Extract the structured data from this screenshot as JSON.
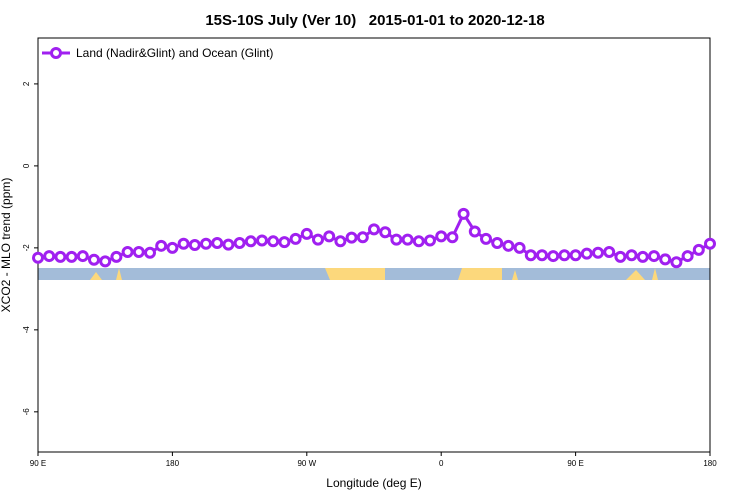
{
  "chart_data": {
    "type": "line",
    "title": "15S-10S July (Ver 10)   2015-01-01 to 2020-12-18",
    "xlabel": "Longitude (deg E)",
    "ylabel": "XCO2 - MLO trend (ppm)",
    "x": [
      90,
      97.5,
      105,
      112.5,
      120,
      127.5,
      135,
      142.5,
      150,
      157.5,
      165,
      172.5,
      180,
      187.5,
      195,
      202.5,
      210,
      217.5,
      225,
      232.5,
      240,
      247.5,
      255,
      262.5,
      270,
      277.5,
      285,
      292.5,
      300,
      307.5,
      315,
      322.5,
      330,
      337.5,
      345,
      352.5,
      360,
      367.5,
      375,
      382.5,
      390,
      397.5,
      405,
      412.5,
      420,
      427.5,
      435,
      442.5,
      450,
      457.5,
      465,
      472.5,
      480,
      487.5,
      495,
      502.5,
      510,
      517.5,
      525,
      532.5,
      540
    ],
    "series": [
      {
        "name": "Land (Nadir&Glint) and Ocean (Glint)",
        "color": "#a020f0",
        "values": [
          -2.24,
          -2.2,
          -2.22,
          -2.22,
          -2.2,
          -2.29,
          -2.33,
          -2.22,
          -2.1,
          -2.1,
          -2.12,
          -1.95,
          -2.0,
          -1.9,
          -1.93,
          -1.9,
          -1.88,
          -1.92,
          -1.88,
          -1.84,
          -1.82,
          -1.84,
          -1.86,
          -1.78,
          -1.66,
          -1.8,
          -1.72,
          -1.84,
          -1.75,
          -1.74,
          -1.55,
          -1.62,
          -1.8,
          -1.8,
          -1.84,
          -1.82,
          -1.72,
          -1.74,
          -1.17,
          -1.6,
          -1.78,
          -1.88,
          -1.95,
          -2.0,
          -2.18,
          -2.18,
          -2.2,
          -2.18,
          -2.18,
          -2.14,
          -2.12,
          -2.1,
          -2.22,
          -2.18,
          -2.22,
          -2.2,
          -2.28,
          -2.35,
          -2.2,
          -2.05,
          -1.9
        ]
      }
    ],
    "xlim": [
      90,
      540
    ],
    "xticks": [
      {
        "value": 90,
        "label": "90 E"
      },
      180,
      {
        "value": 270,
        "label": "90 W"
      },
      {
        "value": 360,
        "label": "0"
      },
      {
        "value": 450,
        "label": "90 E"
      },
      {
        "value": 540,
        "label": "180"
      }
    ],
    "ylim": [
      -6.98,
      3.12
    ],
    "yticks": [
      2,
      0,
      -2,
      -4,
      -6
    ],
    "legend": "top-left"
  }
}
